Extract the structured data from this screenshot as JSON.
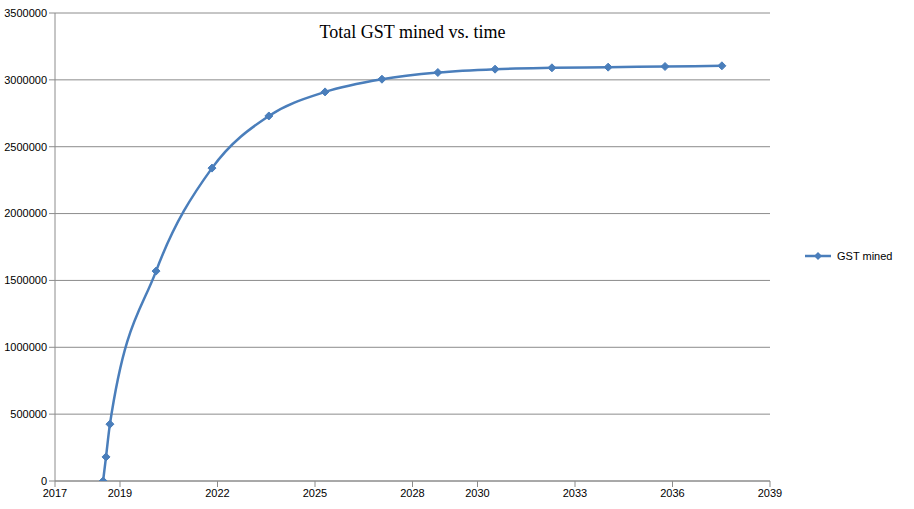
{
  "chart_data": {
    "type": "line",
    "title": "Total GST mined vs. time",
    "x": [
      2018.48,
      2018.57,
      2018.69,
      2020.11,
      2021.83,
      2023.58,
      2025.31,
      2027.06,
      2028.78,
      2030.54,
      2032.29,
      2034.02,
      2035.77,
      2037.52
    ],
    "series": [
      {
        "name": "GST mined",
        "color": "#4a7ebb",
        "marker": "diamond",
        "values": [
          0,
          180000,
          425000,
          1570000,
          2340000,
          2730000,
          2910000,
          3005000,
          3055000,
          3080000,
          3090000,
          3095000,
          3100000,
          3105000
        ]
      }
    ],
    "xlim": [
      2017,
      2039
    ],
    "xticks": [
      2017,
      2019,
      2022,
      2025,
      2028,
      2030,
      2033,
      2036,
      2039
    ],
    "ylim": [
      0,
      3500000
    ],
    "yticks": [
      0,
      500000,
      1000000,
      1500000,
      2000000,
      2500000,
      3000000,
      3500000
    ],
    "grid": true,
    "legend": "right"
  }
}
